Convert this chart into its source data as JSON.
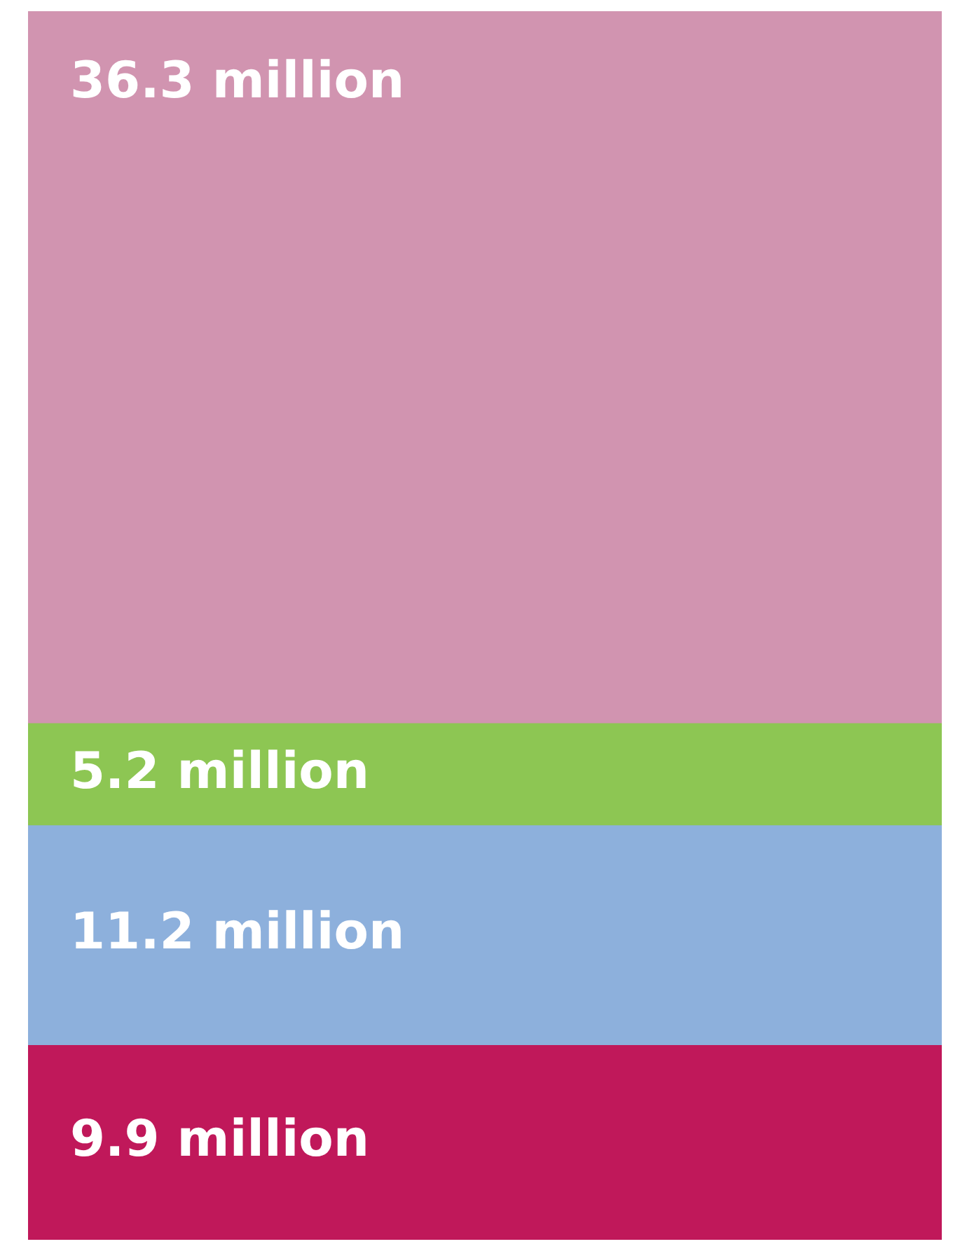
{
  "chart_data": {
    "type": "bar",
    "stacked": true,
    "categories": [
      null
    ],
    "series": [
      {
        "color": "#c0185a",
        "values": [
          9.9
        ],
        "value_labels": [
          "9.9 million"
        ]
      },
      {
        "color": "#8db0dc",
        "values": [
          11.2
        ],
        "value_labels": [
          "11.2 million"
        ]
      },
      {
        "color": "#8dc653",
        "values": [
          5.2
        ],
        "value_labels": [
          "5.2 million"
        ]
      },
      {
        "color": "#d194b0",
        "values": [
          36.3
        ],
        "value_labels": [
          "36.3 million"
        ]
      }
    ],
    "legend": false
  }
}
